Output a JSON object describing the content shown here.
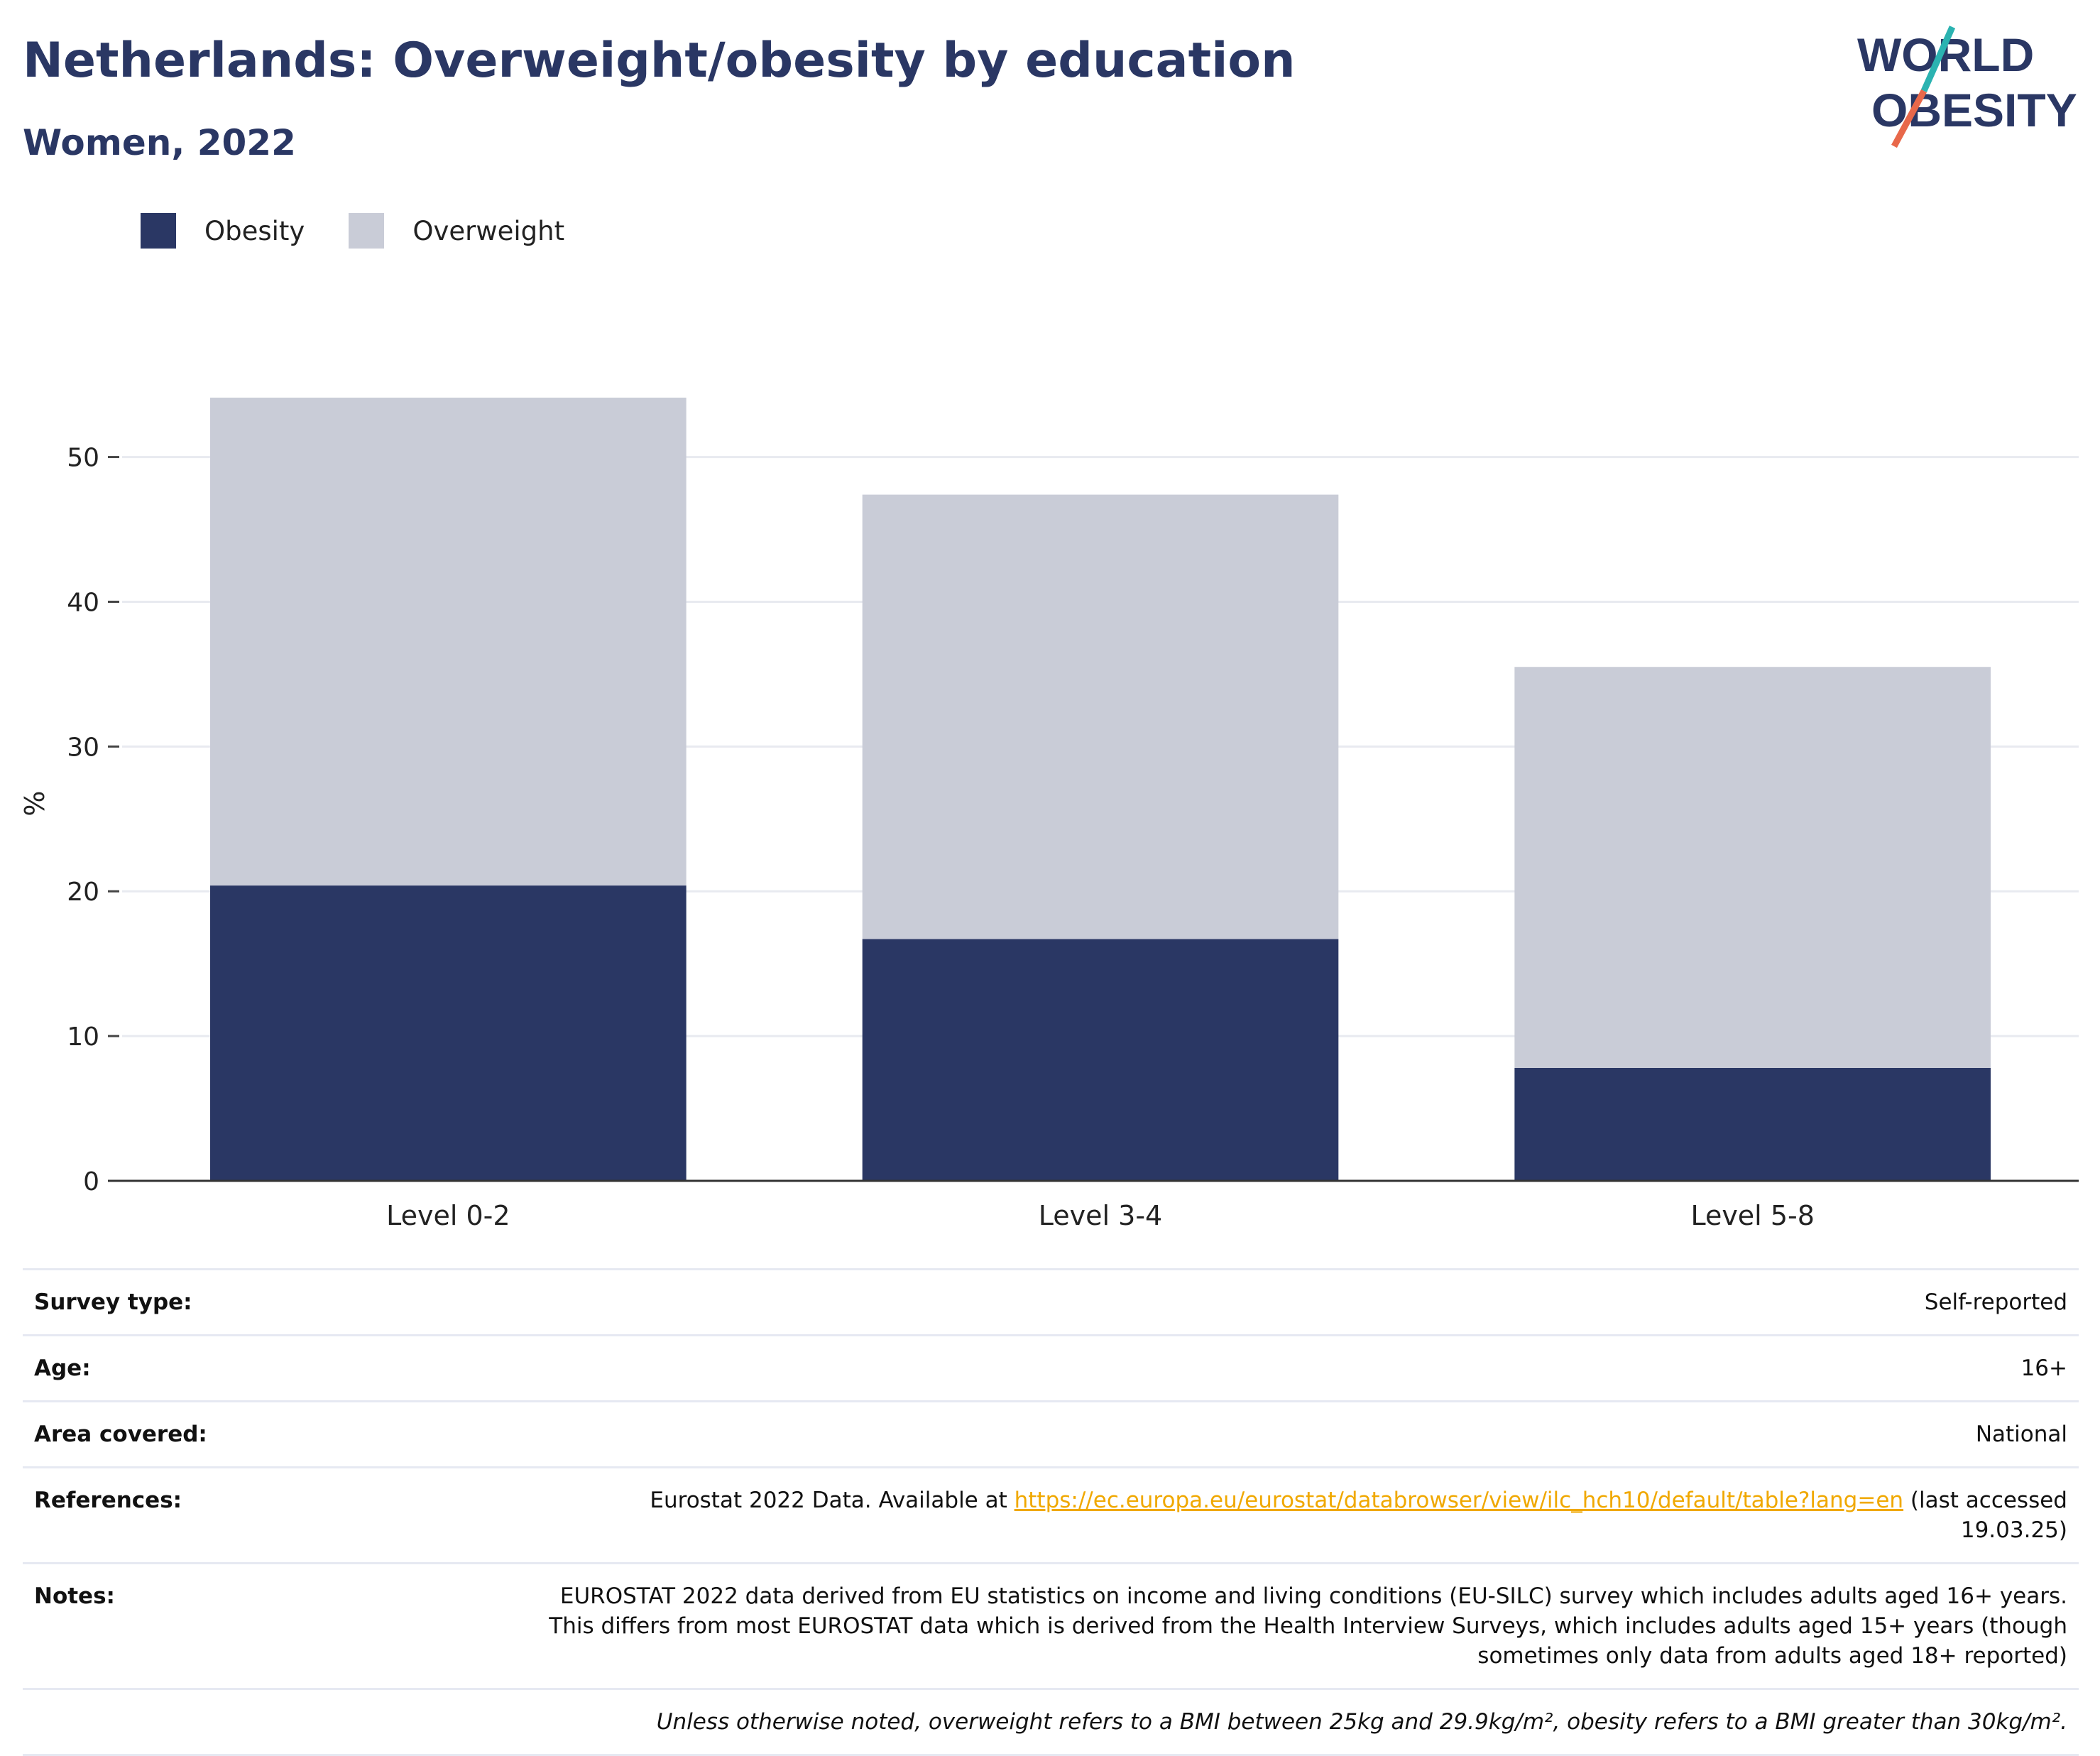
{
  "header": {
    "title": "Netherlands: Overweight/obesity by education",
    "subtitle": "Women, 2022"
  },
  "logo": {
    "line1": "WORLD",
    "line2": "OBESITY",
    "text_color": "#2a3764",
    "slash_color_top": "#2bb3b1",
    "slash_color_bottom": "#e8684a"
  },
  "colors": {
    "obesity": "#2a3764",
    "overweight": "#c9ccd7",
    "gridline": "#e8eaf0",
    "axis": "#333333"
  },
  "legend": {
    "items": [
      {
        "label": "Obesity",
        "color": "#2a3764"
      },
      {
        "label": "Overweight",
        "color": "#c9ccd7"
      }
    ]
  },
  "chart_data": {
    "type": "bar",
    "stacked": true,
    "categories": [
      "Level 0-2",
      "Level 3-4",
      "Level 5-8"
    ],
    "series": [
      {
        "name": "Obesity",
        "values": [
          20.4,
          16.7,
          7.8
        ]
      },
      {
        "name": "Overweight",
        "values": [
          33.7,
          30.7,
          27.7
        ]
      }
    ],
    "ylabel": "%",
    "ylim": [
      0,
      54.1
    ],
    "yticks": [
      0,
      10,
      20,
      30,
      40,
      50
    ],
    "grid": true,
    "legend_position": "top-left"
  },
  "meta": {
    "rows": [
      {
        "label": "Survey type:",
        "value": "Self-reported"
      },
      {
        "label": "Age:",
        "value": "16+"
      },
      {
        "label": "Area covered:",
        "value": "National"
      }
    ],
    "references": {
      "label": "References:",
      "prefix": "Eurostat 2022 Data. Available at ",
      "link": "https://ec.europa.eu/eurostat/databrowser/view/ilc_hch10/default/table?lang=en",
      "suffix": " (last accessed 19.03.25)"
    },
    "notes": {
      "label": "Notes:",
      "value": "EUROSTAT 2022 data derived from EU statistics on income and living conditions (EU-SILC) survey which includes adults aged 16+ years. This differs from most EUROSTAT data which is derived from the Health Interview Surveys, which includes adults aged 15+ years (though sometimes only data from adults aged 18+ reported)"
    },
    "footnote": "Unless otherwise noted, overweight refers to a BMI between 25kg and 29.9kg/m², obesity refers to a BMI greater than 30kg/m²."
  }
}
